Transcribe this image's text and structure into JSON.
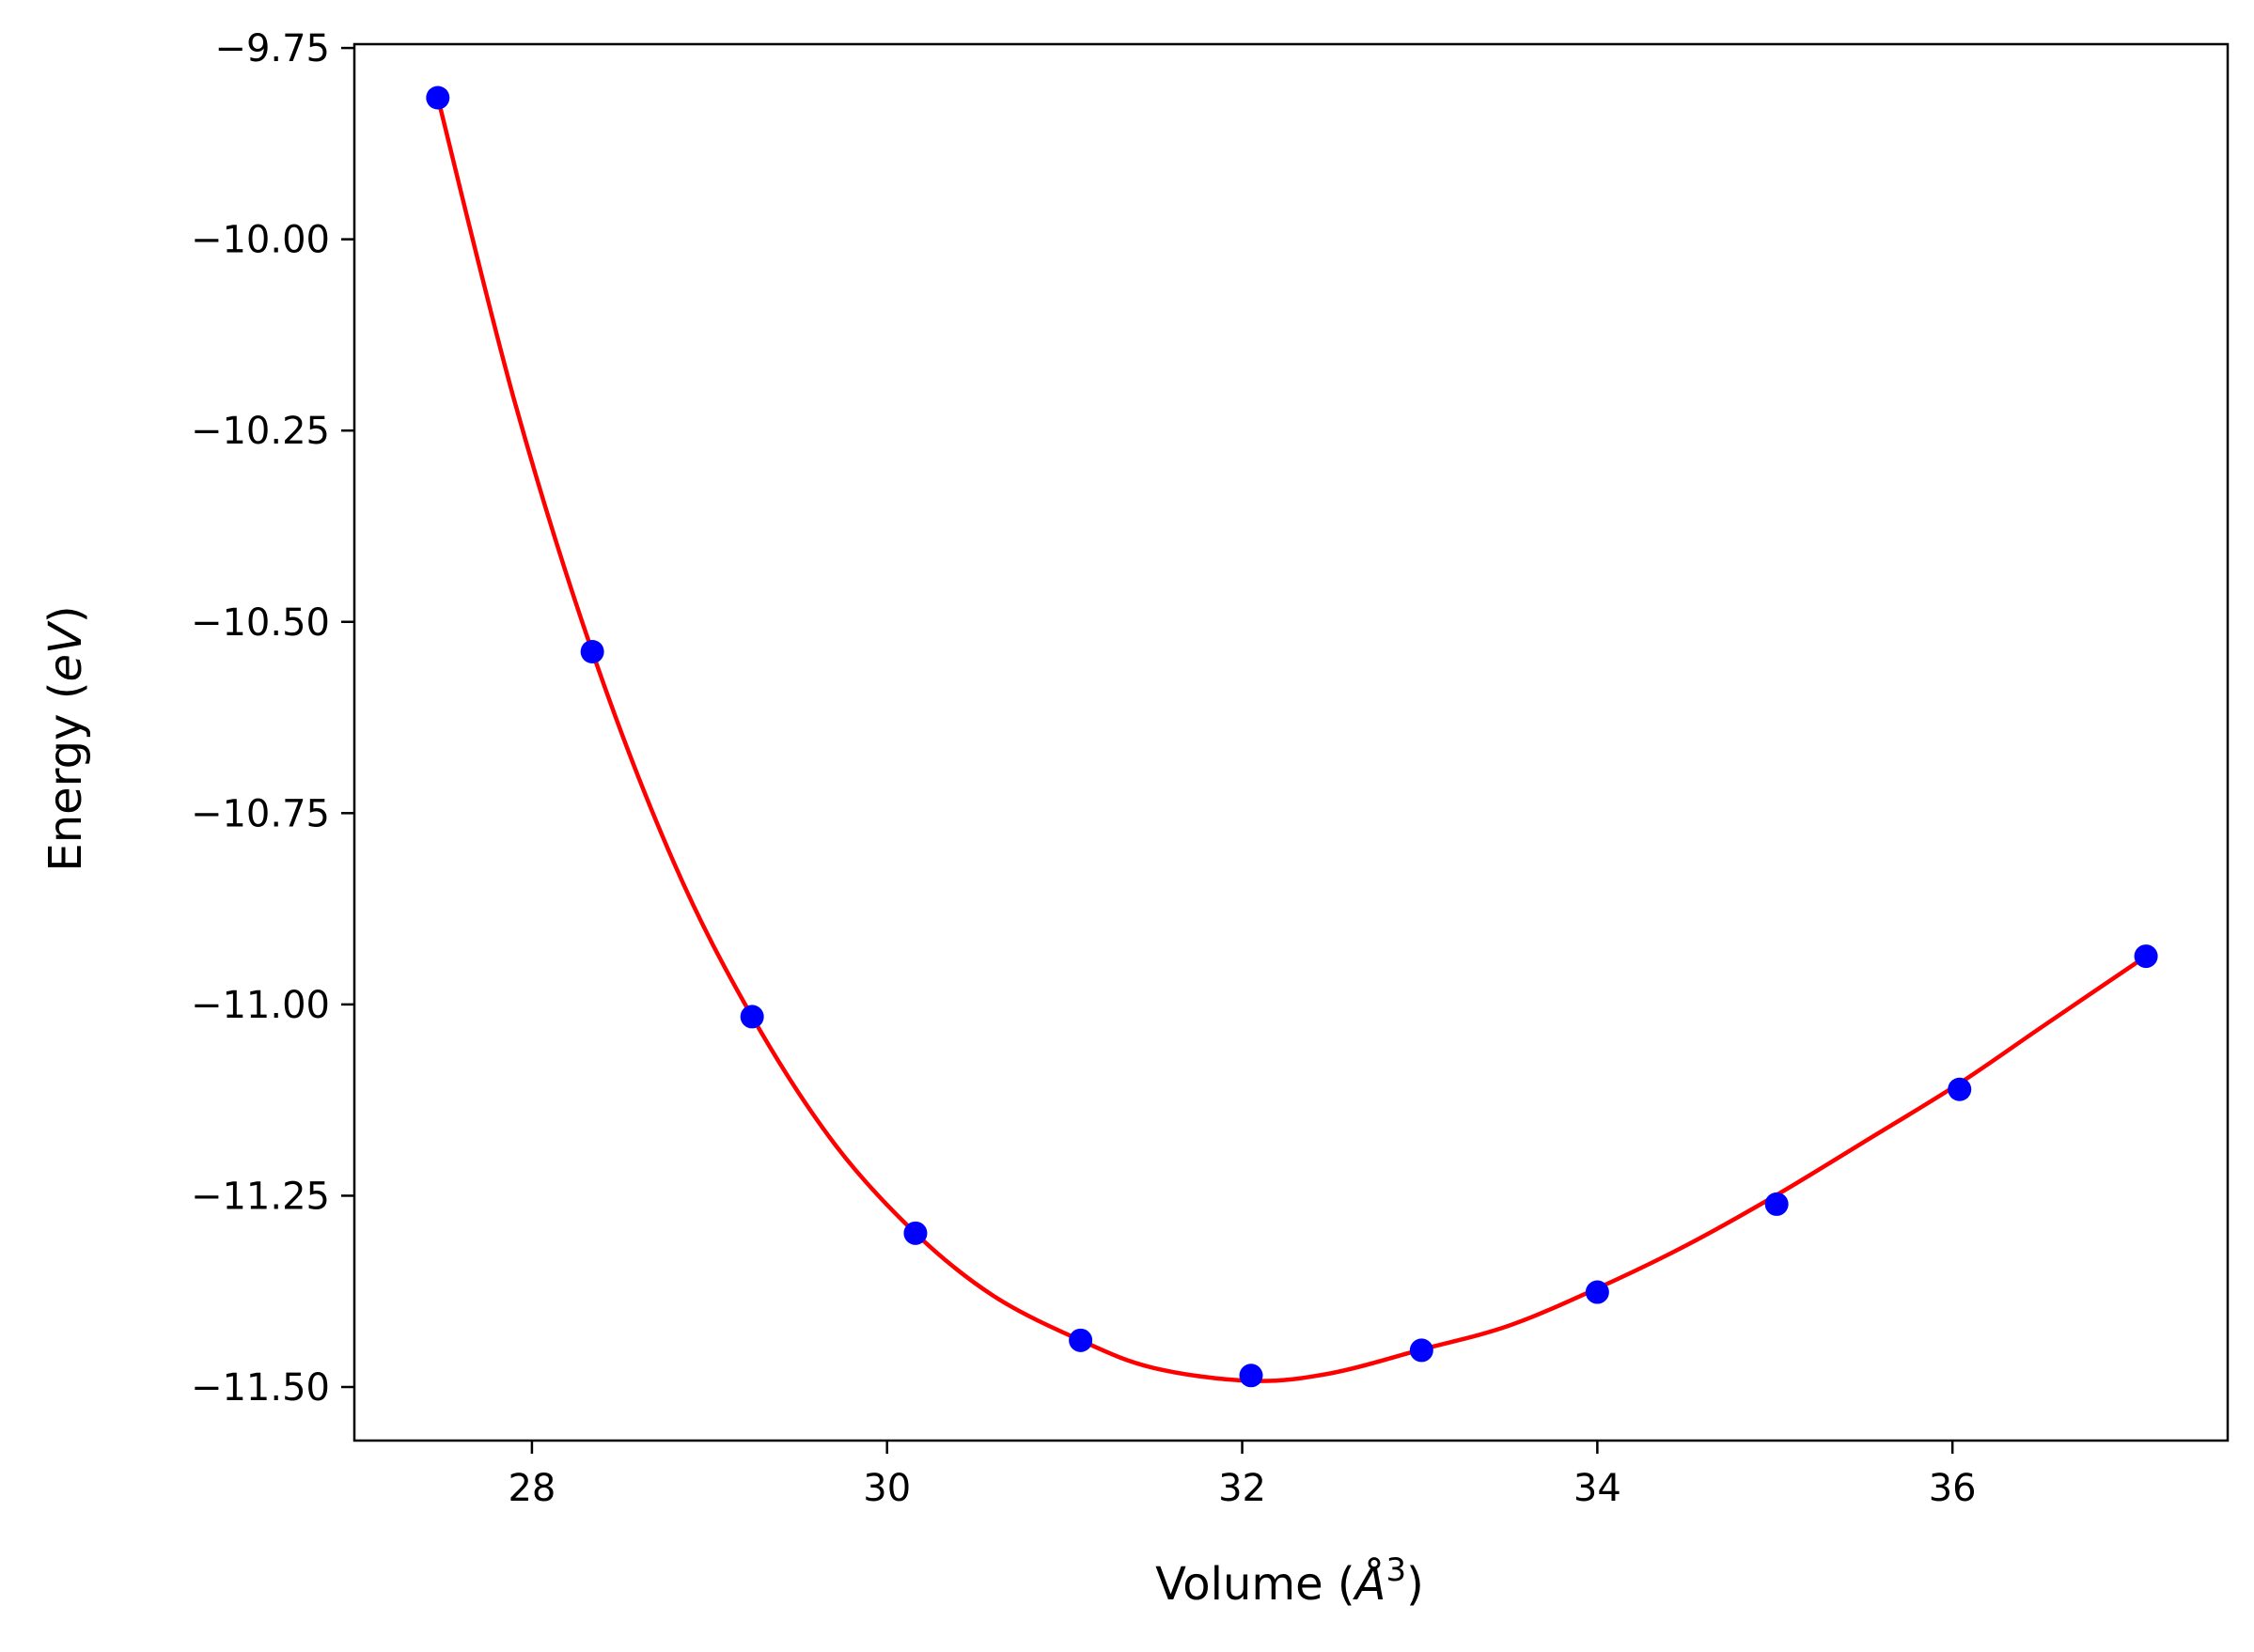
{
  "chart_data": {
    "type": "scatter",
    "xlabel": "Volume (Å³)",
    "xlabel_parts": {
      "main": "Volume (",
      "italic": "Å",
      "sup": "3",
      "close": ")"
    },
    "ylabel": "Energy (eV)",
    "ylabel_parts": {
      "main": "Energy (",
      "italic": "eV",
      "close": ")"
    },
    "xlim": [
      27.0,
      37.55
    ],
    "ylim": [
      -11.57,
      -9.745
    ],
    "x_ticks": [
      28,
      30,
      32,
      34,
      36
    ],
    "x_tick_labels": [
      "28",
      "30",
      "32",
      "34",
      "36"
    ],
    "y_ticks": [
      -9.75,
      -10.0,
      -10.25,
      -10.5,
      -10.75,
      -11.0,
      -11.25,
      -11.5
    ],
    "y_tick_labels": [
      "−9.75",
      "−10.00",
      "−10.25",
      "−10.50",
      "−10.75",
      "−11.00",
      "−11.25",
      "−11.50"
    ],
    "grid": false,
    "legend": "none",
    "series": [
      {
        "kind": "scatter",
        "color": "#0000ff",
        "x": [
          27.47,
          28.34,
          29.24,
          30.16,
          31.09,
          32.05,
          33.01,
          34.0,
          35.01,
          36.04,
          37.09
        ],
        "y": [
          -9.815,
          -10.539,
          -11.016,
          -11.299,
          -11.439,
          -11.485,
          -11.452,
          -11.376,
          -11.261,
          -11.111,
          -10.937
        ]
      },
      {
        "kind": "line",
        "color": "#ff0000",
        "x": [
          27.47,
          27.9,
          28.34,
          28.8,
          29.24,
          29.7,
          30.16,
          30.6,
          31.09,
          31.5,
          32.05,
          32.5,
          33.01,
          33.5,
          34.0,
          34.5,
          35.01,
          35.5,
          36.04,
          36.5,
          37.09
        ],
        "y": [
          -9.815,
          -10.21,
          -10.539,
          -10.815,
          -11.016,
          -11.181,
          -11.299,
          -11.381,
          -11.439,
          -11.475,
          -11.492,
          -11.482,
          -11.451,
          -11.42,
          -11.371,
          -11.315,
          -11.249,
          -11.18,
          -11.103,
          -11.03,
          -10.937
        ]
      }
    ]
  },
  "colors": {
    "axes": "#000000",
    "background": "#ffffff"
  }
}
